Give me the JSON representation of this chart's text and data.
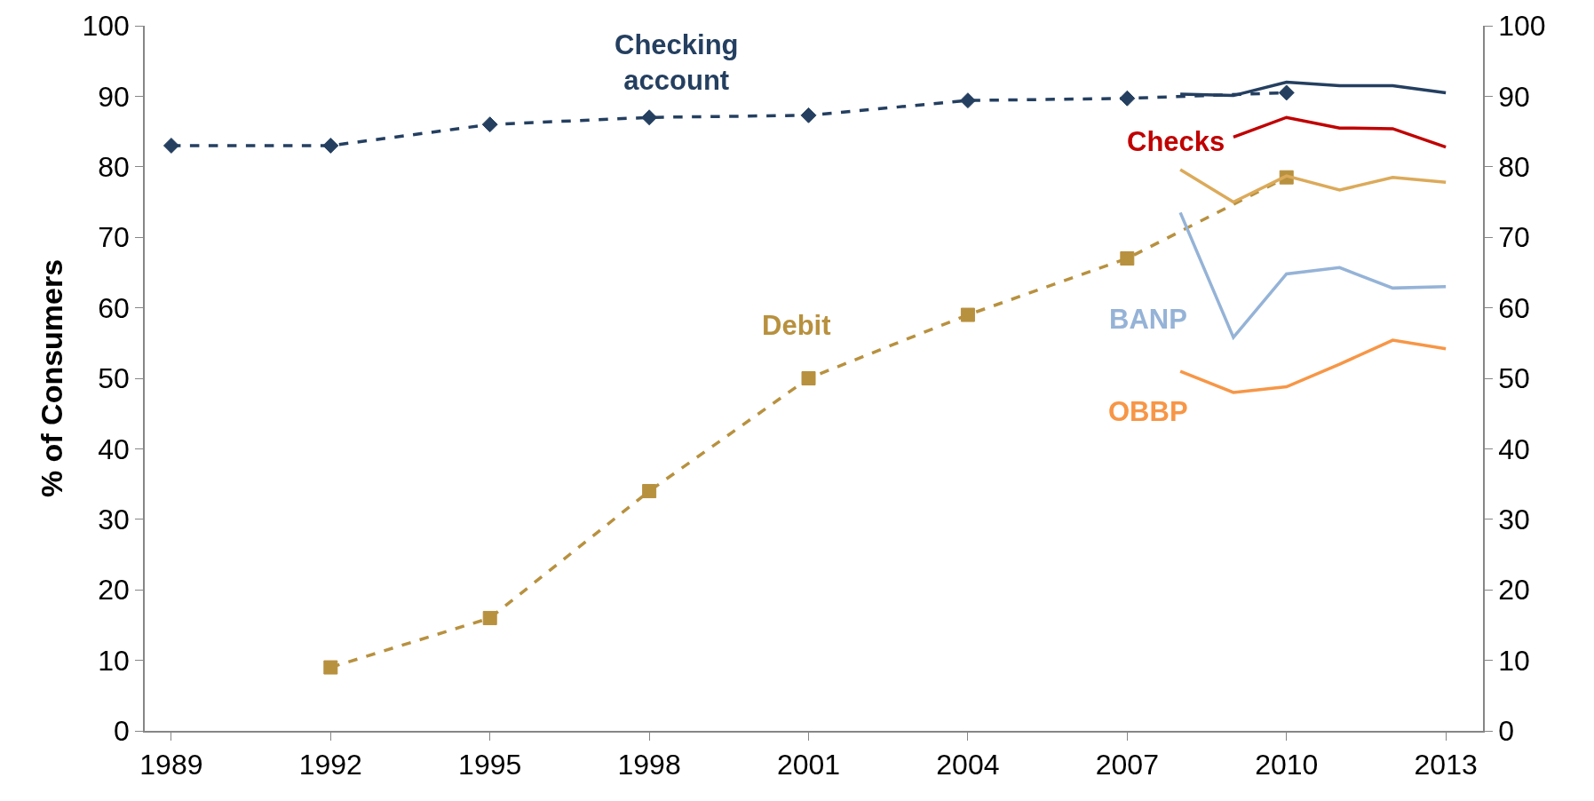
{
  "chart_data": {
    "type": "line",
    "ylabel": "% of Consumers",
    "xlim": [
      1988.5,
      2013.7
    ],
    "xticks": [
      1989,
      1992,
      1995,
      1998,
      2001,
      2004,
      2007,
      2010,
      2013
    ],
    "ylim": [
      0,
      100
    ],
    "yticks": [
      0,
      10,
      20,
      30,
      40,
      50,
      60,
      70,
      80,
      90,
      100
    ],
    "y2lim": [
      0,
      100
    ],
    "y2ticks": [
      0,
      10,
      20,
      30,
      40,
      50,
      60,
      70,
      80,
      90,
      100
    ],
    "legend": false,
    "series": [
      {
        "name": "Checking account",
        "color": "#243f60",
        "line_style": "dashed",
        "marker": "diamond",
        "x": [
          1989,
          1992,
          1995,
          1998,
          2001,
          2004,
          2007,
          2010
        ],
        "values": [
          83,
          83,
          86,
          87,
          87.3,
          89.4,
          89.7,
          90.5
        ]
      },
      {
        "color": "#243f60",
        "line_style": "solid",
        "marker": "none",
        "x": [
          2008,
          2009,
          2010,
          2011,
          2012,
          2013
        ],
        "values": [
          90.3,
          90.1,
          92,
          91.5,
          91.5,
          90.5
        ]
      },
      {
        "name": "Debit",
        "color": "#b8913f",
        "line_style": "dashed",
        "marker": "square",
        "x": [
          1992,
          1995,
          1998,
          2001,
          2004,
          2007,
          2010
        ],
        "values": [
          9,
          16,
          34,
          50,
          59,
          67,
          78.5
        ]
      },
      {
        "color": "#dbaa5a",
        "line_style": "solid",
        "marker": "none",
        "x": [
          2008,
          2009,
          2010,
          2011,
          2012,
          2013
        ],
        "values": [
          79.6,
          75,
          78.7,
          76.7,
          78.5,
          77.8
        ]
      },
      {
        "name": "Checks",
        "color": "#c00000",
        "line_style": "solid",
        "marker": "none",
        "x": [
          2009,
          2010,
          2011,
          2012,
          2013
        ],
        "values": [
          84.2,
          87,
          85.5,
          85.4,
          82.8
        ]
      },
      {
        "name": "BANP",
        "color": "#95b3d7",
        "line_style": "solid",
        "marker": "none",
        "x": [
          2008,
          2009,
          2010,
          2011,
          2012,
          2013
        ],
        "values": [
          73.5,
          55.8,
          64.8,
          65.7,
          62.8,
          63
        ]
      },
      {
        "name": "OBBP",
        "color": "#f79646",
        "line_style": "solid",
        "marker": "none",
        "x": [
          2008,
          2009,
          2010,
          2011,
          2012,
          2013
        ],
        "values": [
          51,
          48,
          48.8,
          52,
          55.4,
          54.2
        ]
      }
    ]
  }
}
